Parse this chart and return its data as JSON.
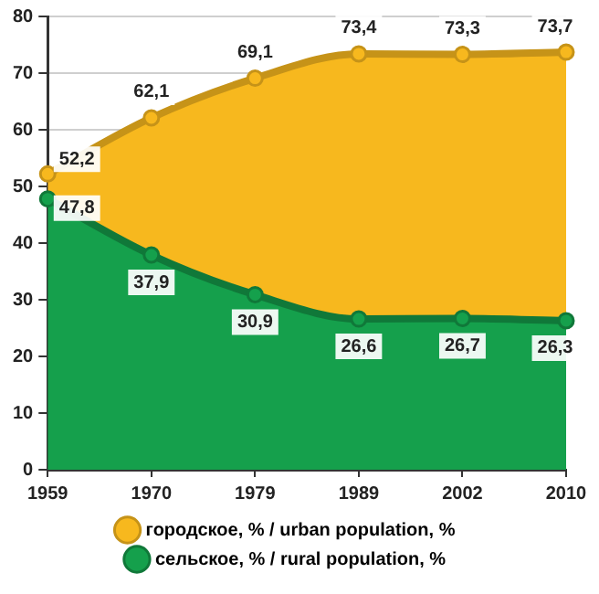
{
  "chart_data": {
    "type": "area",
    "categories": [
      "1959",
      "1970",
      "1979",
      "1989",
      "2002",
      "2010"
    ],
    "series": [
      {
        "name": "городское, % / urban population, %",
        "color": "#f7b81e",
        "values": [
          52.2,
          62.1,
          69.1,
          73.4,
          73.3,
          73.7
        ],
        "value_labels": [
          "52,2",
          "62,1",
          "69,1",
          "73,4",
          "73,3",
          "73,7"
        ]
      },
      {
        "name": "сельское, % / rural population, %",
        "color": "#15a04c",
        "values": [
          47.8,
          37.9,
          30.9,
          26.6,
          26.7,
          26.3
        ],
        "value_labels": [
          "47,8",
          "37,9",
          "30,9",
          "26,6",
          "26,7",
          "26,3"
        ]
      }
    ],
    "ylim": [
      0,
      80
    ],
    "yticks": [
      0,
      10,
      20,
      30,
      40,
      50,
      60,
      70,
      80
    ],
    "grid": true,
    "legend": "bottom",
    "marker": "circle",
    "line_style": "solid"
  }
}
